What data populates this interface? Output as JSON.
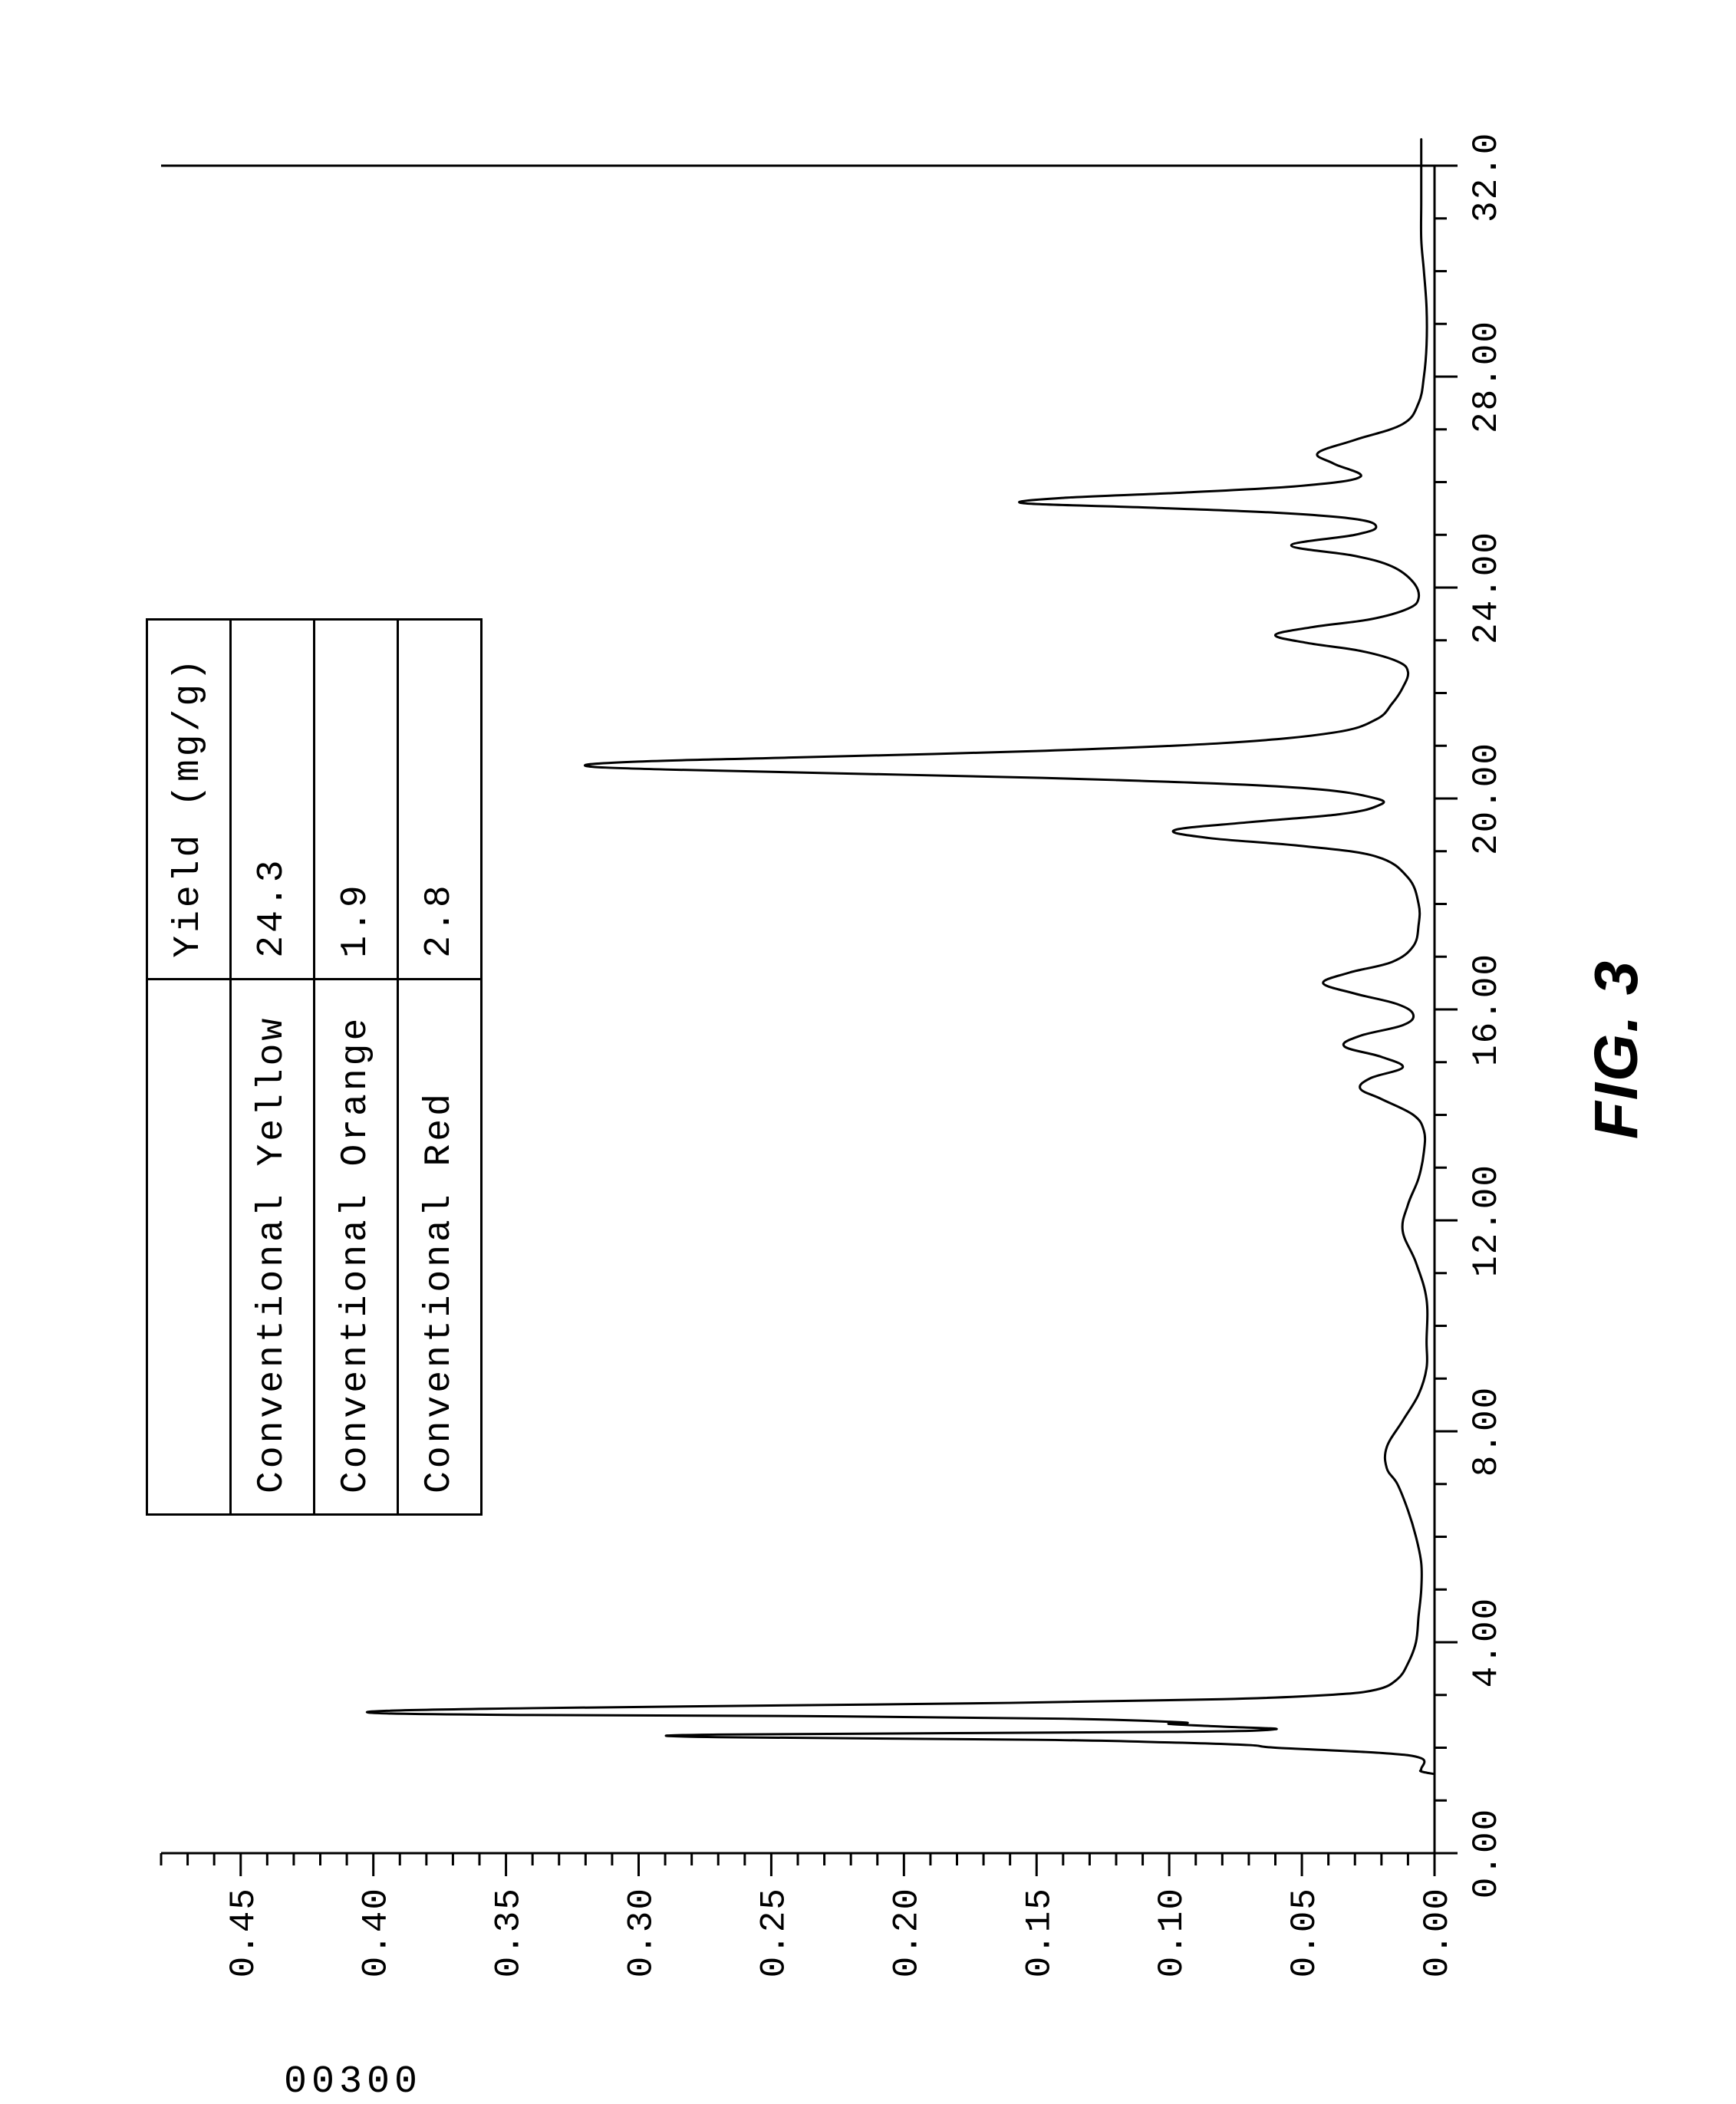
{
  "caption": "FIG. 3",
  "side_label": "00300",
  "table": {
    "headers": [
      "",
      "Yield (mg/g)"
    ],
    "rows": [
      [
        "Conventional Yellow",
        "24.3"
      ],
      [
        "Conventional Orange",
        "1.9"
      ],
      [
        "Conventional Red",
        "2.8"
      ]
    ]
  },
  "chart": {
    "type": "line",
    "background_color": "#ffffff",
    "line_color": "#000000",
    "axis_color": "#000000",
    "line_width": 3,
    "xlim": [
      0,
      32
    ],
    "ylim": [
      0,
      0.48
    ],
    "xtick_step": 4,
    "xtick_minor_step": 1,
    "ytick_step": 0.05,
    "ytick_minor_step": 0.01,
    "xtick_labels": [
      "0.00",
      "4.00",
      "8.00",
      "12.00",
      "16.00",
      "20.00",
      "24.00",
      "28.00",
      "32.00"
    ],
    "ytick_labels": [
      "0.00",
      "0.05",
      "0.10",
      "0.15",
      "0.20",
      "0.25",
      "0.30",
      "0.35",
      "0.40",
      "0.45"
    ],
    "frame_top_open": true,
    "series_xy": [
      [
        1.5,
        0.0
      ],
      [
        1.55,
        0.005
      ],
      [
        1.6,
        0.005
      ],
      [
        1.8,
        0.005
      ],
      [
        1.9,
        0.02
      ],
      [
        2.0,
        0.06
      ],
      [
        2.05,
        0.07
      ],
      [
        2.1,
        0.1
      ],
      [
        2.15,
        0.15
      ],
      [
        2.2,
        0.27
      ],
      [
        2.25,
        0.27
      ],
      [
        2.3,
        0.1
      ],
      [
        2.35,
        0.06
      ],
      [
        2.4,
        0.08
      ],
      [
        2.45,
        0.1
      ],
      [
        2.48,
        0.095
      ],
      [
        2.55,
        0.14
      ],
      [
        2.6,
        0.24
      ],
      [
        2.62,
        0.34
      ],
      [
        2.65,
        0.395
      ],
      [
        2.7,
        0.395
      ],
      [
        2.75,
        0.34
      ],
      [
        2.8,
        0.25
      ],
      [
        2.85,
        0.16
      ],
      [
        2.92,
        0.08
      ],
      [
        3.0,
        0.04
      ],
      [
        3.1,
        0.022
      ],
      [
        3.3,
        0.014
      ],
      [
        3.6,
        0.01
      ],
      [
        4.0,
        0.007
      ],
      [
        4.5,
        0.006
      ],
      [
        5.0,
        0.005
      ],
      [
        5.5,
        0.005
      ],
      [
        6.0,
        0.007
      ],
      [
        6.5,
        0.01
      ],
      [
        7.0,
        0.014
      ],
      [
        7.3,
        0.018
      ],
      [
        7.7,
        0.018
      ],
      [
        8.2,
        0.012
      ],
      [
        8.7,
        0.006
      ],
      [
        9.2,
        0.003
      ],
      [
        9.7,
        0.003
      ],
      [
        10.5,
        0.003
      ],
      [
        11.2,
        0.007
      ],
      [
        11.8,
        0.012
      ],
      [
        12.3,
        0.01
      ],
      [
        12.8,
        0.006
      ],
      [
        13.3,
        0.004
      ],
      [
        13.7,
        0.004
      ],
      [
        14.0,
        0.008
      ],
      [
        14.3,
        0.02
      ],
      [
        14.5,
        0.028
      ],
      [
        14.7,
        0.024
      ],
      [
        14.9,
        0.012
      ],
      [
        15.1,
        0.02
      ],
      [
        15.3,
        0.034
      ],
      [
        15.5,
        0.028
      ],
      [
        15.7,
        0.012
      ],
      [
        15.9,
        0.008
      ],
      [
        16.1,
        0.014
      ],
      [
        16.3,
        0.03
      ],
      [
        16.5,
        0.042
      ],
      [
        16.7,
        0.032
      ],
      [
        16.9,
        0.016
      ],
      [
        17.2,
        0.008
      ],
      [
        17.6,
        0.006
      ],
      [
        18.0,
        0.006
      ],
      [
        18.5,
        0.01
      ],
      [
        18.9,
        0.022
      ],
      [
        19.1,
        0.05
      ],
      [
        19.25,
        0.085
      ],
      [
        19.4,
        0.098
      ],
      [
        19.55,
        0.07
      ],
      [
        19.7,
        0.036
      ],
      [
        19.85,
        0.022
      ],
      [
        20.0,
        0.022
      ],
      [
        20.2,
        0.05
      ],
      [
        20.35,
        0.12
      ],
      [
        20.45,
        0.2
      ],
      [
        20.55,
        0.29
      ],
      [
        20.62,
        0.32
      ],
      [
        20.7,
        0.3
      ],
      [
        20.78,
        0.24
      ],
      [
        20.9,
        0.15
      ],
      [
        21.05,
        0.08
      ],
      [
        21.25,
        0.038
      ],
      [
        21.5,
        0.022
      ],
      [
        21.8,
        0.016
      ],
      [
        22.1,
        0.012
      ],
      [
        22.4,
        0.01
      ],
      [
        22.6,
        0.014
      ],
      [
        22.8,
        0.028
      ],
      [
        22.95,
        0.048
      ],
      [
        23.1,
        0.06
      ],
      [
        23.25,
        0.046
      ],
      [
        23.4,
        0.024
      ],
      [
        23.6,
        0.01
      ],
      [
        23.8,
        0.006
      ],
      [
        24.1,
        0.008
      ],
      [
        24.4,
        0.016
      ],
      [
        24.6,
        0.03
      ],
      [
        24.8,
        0.054
      ],
      [
        25.0,
        0.03
      ],
      [
        25.15,
        0.022
      ],
      [
        25.3,
        0.03
      ],
      [
        25.42,
        0.06
      ],
      [
        25.52,
        0.11
      ],
      [
        25.6,
        0.155
      ],
      [
        25.7,
        0.14
      ],
      [
        25.8,
        0.095
      ],
      [
        25.93,
        0.05
      ],
      [
        26.1,
        0.028
      ],
      [
        26.35,
        0.038
      ],
      [
        26.55,
        0.044
      ],
      [
        26.8,
        0.03
      ],
      [
        27.1,
        0.012
      ],
      [
        27.5,
        0.006
      ],
      [
        28.0,
        0.004
      ],
      [
        28.6,
        0.003
      ],
      [
        29.3,
        0.003
      ],
      [
        30.0,
        0.004
      ],
      [
        30.6,
        0.005
      ],
      [
        31.3,
        0.005
      ],
      [
        32.0,
        0.005
      ],
      [
        32.5,
        0.005
      ]
    ]
  }
}
